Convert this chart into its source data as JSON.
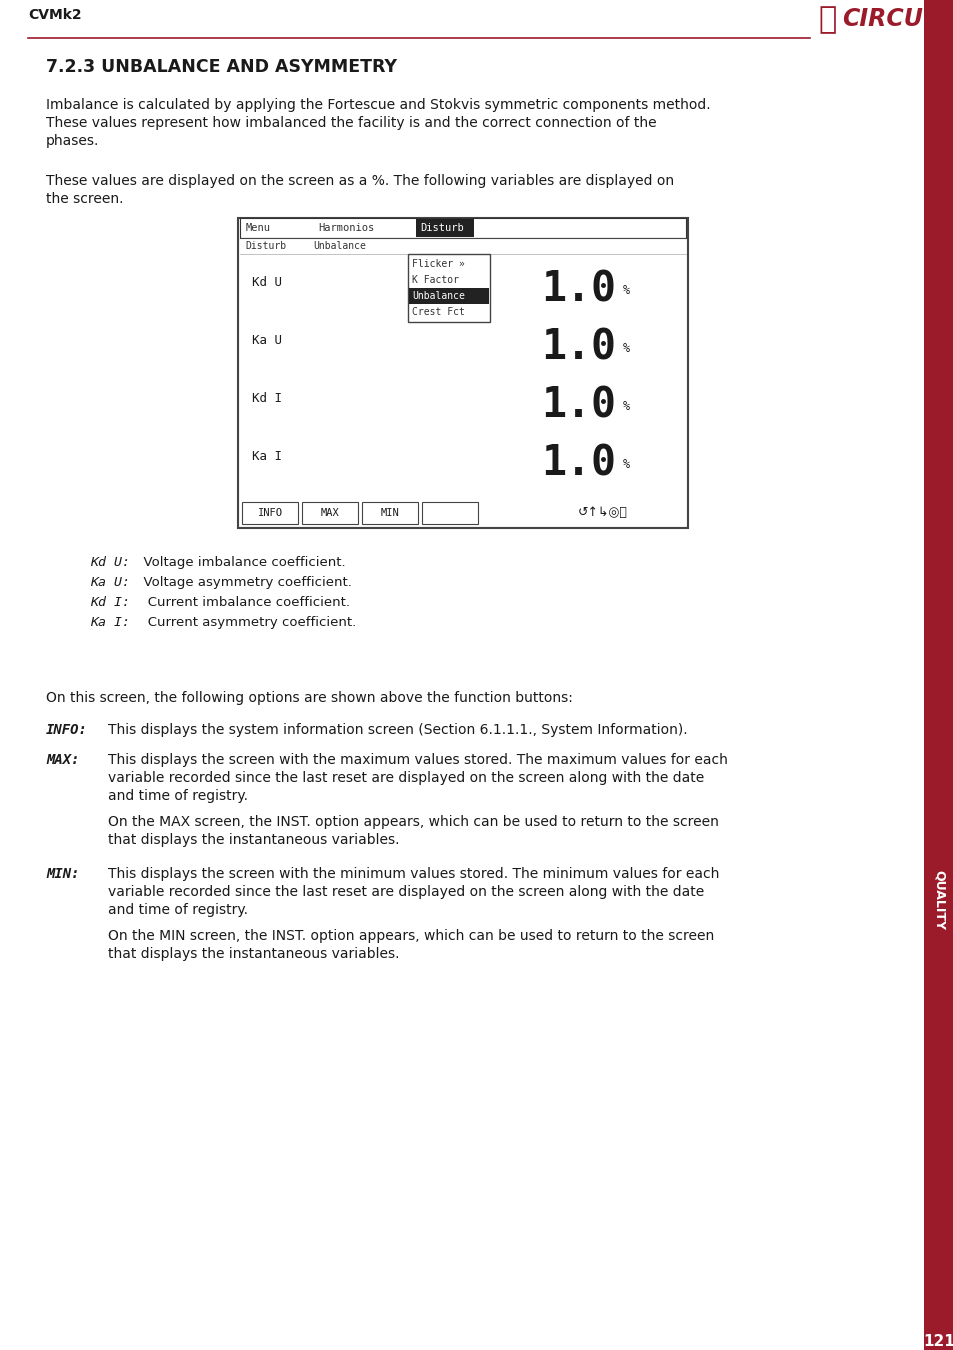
{
  "title_header": "CVMk2",
  "section_title": "7.2.3 UNBALANCE AND ASYMMETRY",
  "body1_lines": [
    "Imbalance is calculated by applying the Fortescue and Stokvis symmetric components method.",
    "These values represent how imbalanced the facility is and the correct connection of the",
    "phases."
  ],
  "body2_lines": [
    "These values are displayed on the screen as a %. The following variables are displayed on",
    "the screen."
  ],
  "screen_menu_items": [
    "Menu",
    "Harmonios",
    "Disturb"
  ],
  "screen_sub_items": [
    "Disturb",
    "Unbalance"
  ],
  "screen_dropdown": [
    "Flicker »",
    "K Factor",
    "Unbalance",
    "Crest Fct"
  ],
  "screen_rows": [
    {
      "label": "Kd U",
      "value": "1.0",
      "unit": "%"
    },
    {
      "label": "Ka U",
      "value": "1.0",
      "unit": "%"
    },
    {
      "label": "Kd I",
      "value": "1.0",
      "unit": "%"
    },
    {
      "label": "Ka I",
      "value": "1.0",
      "unit": "%"
    }
  ],
  "screen_buttons": [
    "INFO",
    "MAX",
    "MIN",
    ""
  ],
  "legend_items": [
    {
      "label": "Kd U:",
      "desc": "  Voltage imbalance coefficient."
    },
    {
      "label": "Ka U:",
      "desc": "  Voltage asymmetry coefficient."
    },
    {
      "label": "Kd I:",
      "desc": "   Current imbalance coefficient."
    },
    {
      "label": "Ka I:",
      "desc": "   Current asymmetry coefficient."
    }
  ],
  "para_intro": "On this screen, the following options are shown above the function buttons:",
  "info_heading": "INFO:",
  "info_text": "This displays the system information screen (Section 6.1.1.1., System Information).",
  "max_heading": "MAX:",
  "max_lines": [
    "This displays the screen with the maximum values stored. The maximum values for each",
    "variable recorded since the last reset are displayed on the screen along with the date",
    "and time of registry."
  ],
  "max_sub_lines": [
    "On the MAX screen, the INST. option appears, which can be used to return to the screen",
    "that displays the instantaneous variables."
  ],
  "min_heading": "MIN:",
  "min_lines": [
    "This displays the screen with the minimum values stored. The minimum values for each",
    "variable recorded since the last reset are displayed on the screen along with the date",
    "and time of registry."
  ],
  "min_sub_lines": [
    "On the MIN screen, the INST. option appears, which can be used to return to the screen",
    "that displays the instantaneous variables."
  ],
  "page_number": "121",
  "quality_label": "QUALITY",
  "accent_color": "#9B1B2A",
  "bg_color": "#ffffff",
  "text_color": "#1a1a1a",
  "dark_color": "#333333"
}
